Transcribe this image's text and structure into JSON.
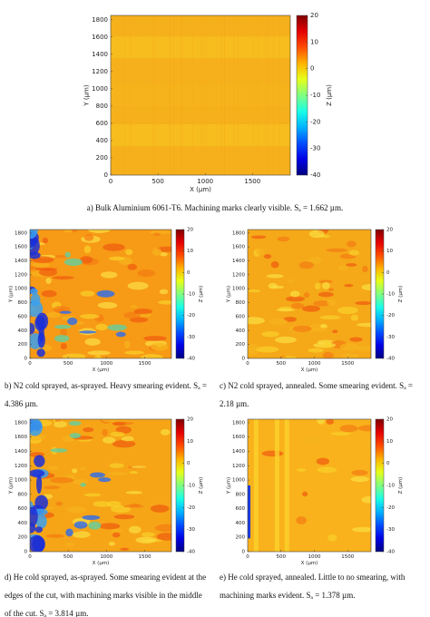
{
  "chart_data": [
    {
      "type": "heatmap",
      "xlabel": "X (µm)",
      "ylabel": "Y (µm)",
      "colorbar_label": "Z (µm)",
      "colormap": "jet",
      "xlim": [
        0,
        1900
      ],
      "ylim": [
        0,
        1850
      ],
      "xticks": [
        0,
        500,
        1000,
        1500
      ],
      "yticks": [
        0,
        200,
        400,
        600,
        800,
        1000,
        1200,
        1400,
        1600,
        1800
      ],
      "clim": [
        -40,
        20
      ],
      "cticks": [
        -40,
        -30,
        -20,
        -10,
        0,
        10,
        20
      ],
      "caption": "a) Bulk Aluminium 6061-T6. Machining marks clearly visible. Sₐ = 1.662 µm."
    },
    {
      "type": "heatmap",
      "xlabel": "X (µm)",
      "ylabel": "Y (µm)",
      "colorbar_label": "Z (µm)",
      "colormap": "jet",
      "xlim": [
        0,
        1850
      ],
      "ylim": [
        0,
        1850
      ],
      "xticks": [
        0,
        500,
        1000,
        1500
      ],
      "yticks": [
        0,
        200,
        400,
        600,
        800,
        1000,
        1200,
        1400,
        1600,
        1800
      ],
      "clim": [
        -40,
        20
      ],
      "cticks": [
        -40,
        -30,
        -20,
        -10,
        0,
        10,
        20
      ],
      "caption": "b) N2 cold sprayed, as-sprayed. Heavy smearing evident. Sₐ = 4.386 µm."
    },
    {
      "type": "heatmap",
      "xlabel": "X (µm)",
      "ylabel": "Y (µm)",
      "colorbar_label": "Z (µm)",
      "colormap": "jet",
      "xlim": [
        0,
        1850
      ],
      "ylim": [
        0,
        1850
      ],
      "xticks": [
        0,
        500,
        1000,
        1500
      ],
      "yticks": [
        0,
        200,
        400,
        600,
        800,
        1000,
        1200,
        1400,
        1600,
        1800
      ],
      "clim": [
        -40,
        20
      ],
      "cticks": [
        -40,
        -30,
        -20,
        -10,
        0,
        10,
        20
      ],
      "caption": "c) N2 cold sprayed, annealed. Some smearing evident. Sₐ = 2.18 µm."
    },
    {
      "type": "heatmap",
      "xlabel": "X (µm)",
      "ylabel": "Y (µm)",
      "colorbar_label": "Z (µm)",
      "colormap": "jet",
      "xlim": [
        0,
        1850
      ],
      "ylim": [
        0,
        1850
      ],
      "xticks": [
        0,
        500,
        1000,
        1500
      ],
      "yticks": [
        0,
        200,
        400,
        600,
        800,
        1000,
        1200,
        1400,
        1600,
        1800
      ],
      "clim": [
        -40,
        20
      ],
      "cticks": [
        -40,
        -30,
        -20,
        -10,
        0,
        10,
        20
      ],
      "caption": "d) He cold sprayed, as-sprayed. Some smearing evident at the edges of the cut, with machining marks visible in the middle of the cut. Sₐ = 3.814 µm."
    },
    {
      "type": "heatmap",
      "xlabel": "X (µm)",
      "ylabel": "Y (µm)",
      "colorbar_label": "Z (µm)",
      "colormap": "jet",
      "xlim": [
        0,
        1850
      ],
      "ylim": [
        0,
        1850
      ],
      "xticks": [
        0,
        500,
        1000,
        1500
      ],
      "yticks": [
        0,
        200,
        400,
        600,
        800,
        1000,
        1200,
        1400,
        1600,
        1800
      ],
      "clim": [
        -40,
        20
      ],
      "cticks": [
        -40,
        -30,
        -20,
        -10,
        0,
        10,
        20
      ],
      "caption": "e) He cold sprayed, annealed. Little to no smearing, with machining marks evident. Sₐ = 1.378 µm."
    }
  ]
}
